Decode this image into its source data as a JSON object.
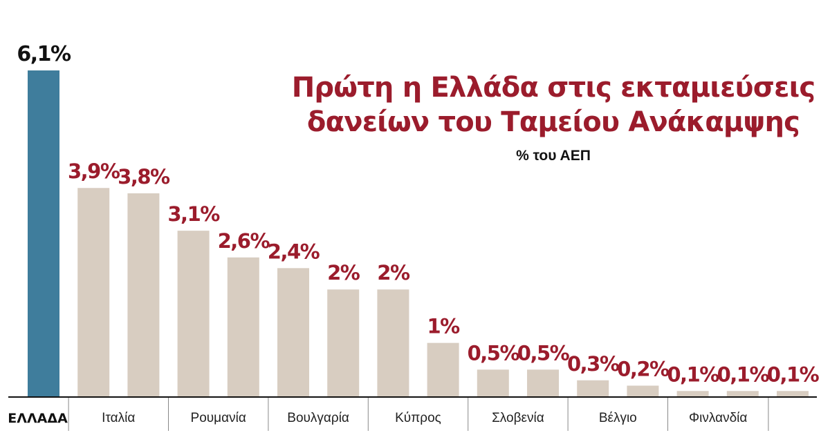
{
  "title_lines": [
    "Πρώτη η Ελλάδα στις εκταμιεύσεις",
    "δανείων του Ταμείου Ανάκαμψης"
  ],
  "subtitle": "% του ΑΕΠ",
  "colors": {
    "highlight_bar": "#3f7d9c",
    "bar": "#d8cdc1",
    "highlight_value": "#111111",
    "value": "#9b1c2c",
    "title": "#9b1c2c",
    "axis": "#222222"
  },
  "chart_data": {
    "type": "bar",
    "title": "Πρώτη η Ελλάδα στις εκταμιεύσεις δανείων του Ταμείου Ανάκαμψης",
    "subtitle": "% του ΑΕΠ",
    "ylim": [
      0,
      6.1
    ],
    "grid": false,
    "values": [
      6.1,
      3.9,
      3.8,
      3.1,
      2.6,
      2.4,
      2.0,
      2.0,
      1.0,
      0.5,
      0.5,
      0.3,
      0.2,
      0.1,
      0.1,
      0.1
    ],
    "value_labels": [
      "6,1%",
      "3,9%",
      "3,8%",
      "3,1%",
      "2,6%",
      "2,4%",
      "2%",
      "2%",
      "1%",
      "0,5%",
      "0,5%",
      "0,3%",
      "0,2%",
      "0,1%",
      "0,1%",
      "0,1%"
    ],
    "highlight_index": 0,
    "axis_labels": [
      {
        "text": "ΕΛΛΑΔΑ",
        "from": 0,
        "to": 0,
        "highlight": true
      },
      {
        "text": "Ιταλία",
        "from": 1,
        "to": 2,
        "highlight": false
      },
      {
        "text": "Ρουμανία",
        "from": 3,
        "to": 4,
        "highlight": false
      },
      {
        "text": "Βουλγαρία",
        "from": 5,
        "to": 6,
        "highlight": false
      },
      {
        "text": "Κύπρος",
        "from": 7,
        "to": 8,
        "highlight": false
      },
      {
        "text": "Σλοβενία",
        "from": 9,
        "to": 10,
        "highlight": false
      },
      {
        "text": "Βέλγιο",
        "from": 11,
        "to": 12,
        "highlight": false
      },
      {
        "text": "Φινλανδία",
        "from": 13,
        "to": 14,
        "highlight": false
      }
    ]
  }
}
